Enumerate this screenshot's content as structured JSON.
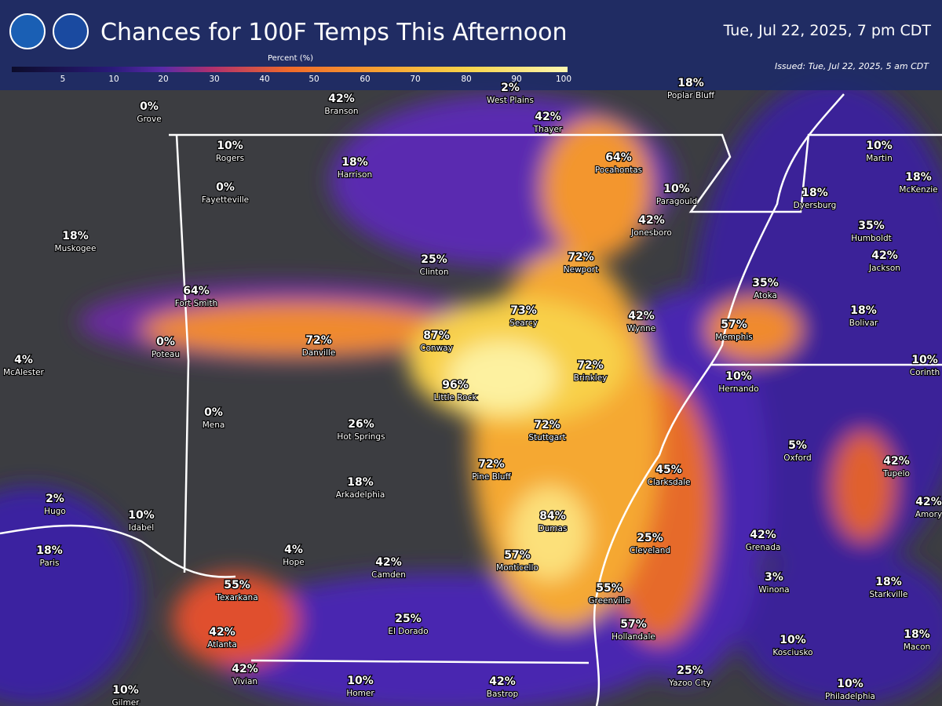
{
  "header": {
    "title": "Chances for 100F Temps This Afternoon",
    "valid_time": "Tue, Jul 22, 2025, 7 pm CDT",
    "issued": "Issued: Tue, Jul 22, 2025, 5 am CDT"
  },
  "legend": {
    "label": "Percent (%)",
    "ticks": [
      5,
      10,
      20,
      30,
      40,
      50,
      60,
      70,
      80,
      90,
      100
    ]
  },
  "cities": [
    {
      "label": "0%",
      "name": "Grove"
    },
    {
      "label": "42%",
      "name": "Branson"
    },
    {
      "label": "2%",
      "name": "West Plains"
    },
    {
      "label": "42%",
      "name": "Thayer"
    },
    {
      "label": "18%",
      "name": "Poplar Bluff"
    },
    {
      "label": "10%",
      "name": "Rogers"
    },
    {
      "label": "18%",
      "name": "Harrison"
    },
    {
      "label": "64%",
      "name": "Pocahontas"
    },
    {
      "label": "10%",
      "name": "Paragould"
    },
    {
      "label": "0%",
      "name": "Fayetteville"
    },
    {
      "label": "42%",
      "name": "Jonesboro"
    },
    {
      "label": "18%",
      "name": "Dyersburg"
    },
    {
      "label": "10%",
      "name": "Martin"
    },
    {
      "label": "18%",
      "name": "McKenzie"
    },
    {
      "label": "35%",
      "name": "Humboldt"
    },
    {
      "label": "42%",
      "name": "Jackson"
    },
    {
      "label": "18%",
      "name": "Muskogee"
    },
    {
      "label": "25%",
      "name": "Clinton"
    },
    {
      "label": "72%",
      "name": "Newport"
    },
    {
      "label": "35%",
      "name": "Atoka"
    },
    {
      "label": "64%",
      "name": "Fort Smith"
    },
    {
      "label": "73%",
      "name": "Searcy"
    },
    {
      "label": "42%",
      "name": "Wynne"
    },
    {
      "label": "57%",
      "name": "Memphis"
    },
    {
      "label": "18%",
      "name": "Bolivar"
    },
    {
      "label": "0%",
      "name": "Poteau"
    },
    {
      "label": "72%",
      "name": "Danville"
    },
    {
      "label": "87%",
      "name": "Conway"
    },
    {
      "label": "72%",
      "name": "Brinkley"
    },
    {
      "label": "10%",
      "name": "Hernando"
    },
    {
      "label": "10%",
      "name": "Corinth"
    },
    {
      "label": "4%",
      "name": "McAlester"
    },
    {
      "label": "96%",
      "name": "Little Rock"
    },
    {
      "label": "0%",
      "name": "Mena"
    },
    {
      "label": "26%",
      "name": "Hot Springs"
    },
    {
      "label": "72%",
      "name": "Stuttgart"
    },
    {
      "label": "5%",
      "name": "Oxford"
    },
    {
      "label": "42%",
      "name": "Tupelo"
    },
    {
      "label": "72%",
      "name": "Pine Bluff"
    },
    {
      "label": "45%",
      "name": "Clarksdale"
    },
    {
      "label": "18%",
      "name": "Arkadelphia"
    },
    {
      "label": "42%",
      "name": "Amory"
    },
    {
      "label": "2%",
      "name": "Hugo"
    },
    {
      "label": "10%",
      "name": "Idabel"
    },
    {
      "label": "84%",
      "name": "Dumas"
    },
    {
      "label": "25%",
      "name": "Cleveland"
    },
    {
      "label": "42%",
      "name": "Grenada"
    },
    {
      "label": "18%",
      "name": "Paris"
    },
    {
      "label": "4%",
      "name": "Hope"
    },
    {
      "label": "42%",
      "name": "Camden"
    },
    {
      "label": "57%",
      "name": "Monticello"
    },
    {
      "label": "3%",
      "name": "Winona"
    },
    {
      "label": "18%",
      "name": "Starkville"
    },
    {
      "label": "55%",
      "name": "Texarkana"
    },
    {
      "label": "55%",
      "name": "Greenville"
    },
    {
      "label": "25%",
      "name": "El Dorado"
    },
    {
      "label": "57%",
      "name": "Hollandale"
    },
    {
      "label": "42%",
      "name": "Atlanta"
    },
    {
      "label": "10%",
      "name": "Kosciusko"
    },
    {
      "label": "18%",
      "name": "Macon"
    },
    {
      "label": "42%",
      "name": "Vivian"
    },
    {
      "label": "10%",
      "name": "Homer"
    },
    {
      "label": "42%",
      "name": "Bastrop"
    },
    {
      "label": "25%",
      "name": "Yazoo City"
    },
    {
      "label": "10%",
      "name": "Philadelphia"
    },
    {
      "label": "10%",
      "name": "Gilmer"
    }
  ]
}
